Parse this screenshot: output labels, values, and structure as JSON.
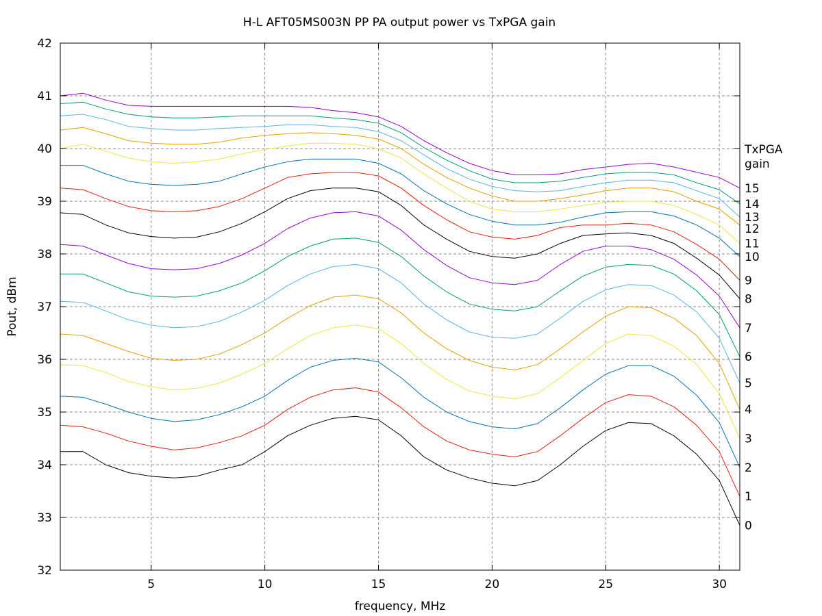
{
  "chart_data": {
    "type": "line",
    "title": "H-L AFT05MS003N PP PA output power vs TxPGA gain",
    "xlabel": "frequency, MHz",
    "ylabel": "Pout, dBm",
    "xlim": [
      1,
      30.9
    ],
    "ylim": [
      32,
      42
    ],
    "xticks": [
      "5",
      "10",
      "15",
      "20",
      "25",
      "30"
    ],
    "xtick_values": [
      5,
      10,
      15,
      20,
      25,
      30
    ],
    "yticks": [
      "32",
      "33",
      "34",
      "35",
      "36",
      "37",
      "38",
      "39",
      "40",
      "41",
      "42"
    ],
    "ytick_values": [
      32,
      33,
      34,
      35,
      36,
      37,
      38,
      39,
      40,
      41,
      42
    ],
    "grid": true,
    "legend_title": [
      "TxPGA",
      "gain"
    ],
    "x": [
      1,
      2,
      3,
      4,
      5,
      6,
      7,
      8,
      9,
      10,
      11,
      12,
      13,
      14,
      15,
      16,
      17,
      18,
      19,
      20,
      21,
      22,
      23,
      24,
      25,
      26,
      27,
      28,
      29,
      30,
      30.9
    ],
    "series": [
      {
        "name": "0",
        "color": "#000000",
        "values": [
          34.25,
          34.25,
          34.0,
          33.85,
          33.78,
          33.75,
          33.78,
          33.9,
          34.0,
          34.25,
          34.55,
          34.75,
          34.88,
          34.92,
          34.85,
          34.55,
          34.15,
          33.9,
          33.75,
          33.65,
          33.6,
          33.7,
          34.0,
          34.35,
          34.65,
          34.8,
          34.78,
          34.55,
          34.2,
          33.7,
          32.85
        ]
      },
      {
        "name": "1",
        "color": "#e51e10",
        "values": [
          34.75,
          34.72,
          34.6,
          34.45,
          34.35,
          34.28,
          34.32,
          34.42,
          34.55,
          34.75,
          35.05,
          35.28,
          35.42,
          35.46,
          35.38,
          35.08,
          34.72,
          34.45,
          34.28,
          34.2,
          34.15,
          34.25,
          34.55,
          34.88,
          35.18,
          35.33,
          35.3,
          35.1,
          34.75,
          34.25,
          33.4
        ]
      },
      {
        "name": "2",
        "color": "#0072b2",
        "values": [
          35.3,
          35.28,
          35.15,
          35.0,
          34.88,
          34.82,
          34.85,
          34.95,
          35.1,
          35.3,
          35.6,
          35.85,
          35.98,
          36.02,
          35.95,
          35.65,
          35.28,
          35.0,
          34.82,
          34.72,
          34.68,
          34.78,
          35.08,
          35.42,
          35.72,
          35.88,
          35.88,
          35.68,
          35.32,
          34.8,
          33.95
        ]
      },
      {
        "name": "3",
        "color": "#f0e442",
        "values": [
          35.9,
          35.88,
          35.75,
          35.58,
          35.48,
          35.42,
          35.45,
          35.55,
          35.72,
          35.92,
          36.2,
          36.45,
          36.6,
          36.65,
          36.58,
          36.3,
          35.92,
          35.62,
          35.4,
          35.3,
          35.25,
          35.35,
          35.65,
          35.98,
          36.3,
          36.48,
          36.45,
          36.25,
          35.9,
          35.35,
          34.5
        ]
      },
      {
        "name": "4",
        "color": "#e69f00",
        "values": [
          36.48,
          36.45,
          36.3,
          36.15,
          36.02,
          35.98,
          36.0,
          36.1,
          36.28,
          36.5,
          36.78,
          37.02,
          37.18,
          37.22,
          37.15,
          36.88,
          36.5,
          36.2,
          35.98,
          35.85,
          35.8,
          35.9,
          36.2,
          36.52,
          36.82,
          37.0,
          36.98,
          36.78,
          36.45,
          35.92,
          35.05
        ]
      },
      {
        "name": "5",
        "color": "#56b4e9",
        "values": [
          37.1,
          37.08,
          36.92,
          36.75,
          36.65,
          36.6,
          36.62,
          36.72,
          36.9,
          37.12,
          37.4,
          37.62,
          37.76,
          37.8,
          37.72,
          37.45,
          37.05,
          36.75,
          36.52,
          36.42,
          36.4,
          36.48,
          36.78,
          37.1,
          37.32,
          37.42,
          37.4,
          37.22,
          36.9,
          36.4,
          35.55
        ]
      },
      {
        "name": "6",
        "color": "#009e73",
        "values": [
          37.62,
          37.62,
          37.45,
          37.28,
          37.2,
          37.18,
          37.2,
          37.3,
          37.45,
          37.68,
          37.95,
          38.15,
          38.28,
          38.3,
          38.22,
          37.95,
          37.58,
          37.28,
          37.05,
          36.95,
          36.92,
          37.0,
          37.3,
          37.58,
          37.75,
          37.8,
          37.78,
          37.62,
          37.3,
          36.85,
          36.05
        ]
      },
      {
        "name": "7",
        "color": "#9400d3",
        "values": [
          38.18,
          38.15,
          37.98,
          37.82,
          37.72,
          37.7,
          37.72,
          37.82,
          37.98,
          38.2,
          38.48,
          38.68,
          38.78,
          38.8,
          38.72,
          38.45,
          38.08,
          37.78,
          37.55,
          37.45,
          37.42,
          37.5,
          37.8,
          38.05,
          38.15,
          38.15,
          38.08,
          37.9,
          37.6,
          37.2,
          36.6
        ]
      },
      {
        "name": "8",
        "color": "#000000",
        "values": [
          38.78,
          38.75,
          38.55,
          38.4,
          38.33,
          38.3,
          38.32,
          38.42,
          38.58,
          38.8,
          39.05,
          39.2,
          39.25,
          39.25,
          39.18,
          38.92,
          38.55,
          38.28,
          38.05,
          37.95,
          37.92,
          38.0,
          38.2,
          38.35,
          38.38,
          38.4,
          38.35,
          38.2,
          37.92,
          37.6,
          37.15
        ]
      },
      {
        "name": "9",
        "color": "#e51e10",
        "values": [
          39.25,
          39.22,
          39.05,
          38.9,
          38.82,
          38.8,
          38.82,
          38.9,
          39.05,
          39.25,
          39.45,
          39.52,
          39.55,
          39.55,
          39.48,
          39.25,
          38.92,
          38.65,
          38.42,
          38.32,
          38.28,
          38.35,
          38.5,
          38.55,
          38.55,
          38.58,
          38.55,
          38.42,
          38.18,
          37.9,
          37.5
        ]
      },
      {
        "name": "10",
        "color": "#0072b2",
        "values": [
          39.68,
          39.68,
          39.52,
          39.38,
          39.32,
          39.3,
          39.32,
          39.38,
          39.52,
          39.65,
          39.75,
          39.8,
          39.8,
          39.8,
          39.72,
          39.52,
          39.2,
          38.95,
          38.75,
          38.62,
          38.55,
          38.55,
          38.6,
          38.7,
          38.78,
          38.8,
          38.8,
          38.72,
          38.55,
          38.3,
          37.95
        ]
      },
      {
        "name": "11",
        "color": "#f0e442",
        "values": [
          40.0,
          40.08,
          39.95,
          39.82,
          39.75,
          39.72,
          39.75,
          39.8,
          39.9,
          39.98,
          40.05,
          40.1,
          40.1,
          40.08,
          40.0,
          39.82,
          39.52,
          39.25,
          39.0,
          38.85,
          38.8,
          38.8,
          38.85,
          38.92,
          38.98,
          39.0,
          39.0,
          38.92,
          38.75,
          38.55,
          38.2
        ]
      },
      {
        "name": "12",
        "color": "#e69f00",
        "values": [
          40.35,
          40.4,
          40.28,
          40.15,
          40.1,
          40.08,
          40.08,
          40.12,
          40.2,
          40.25,
          40.28,
          40.3,
          40.28,
          40.25,
          40.18,
          40.0,
          39.7,
          39.45,
          39.25,
          39.1,
          39.0,
          39.0,
          39.05,
          39.12,
          39.2,
          39.25,
          39.25,
          39.18,
          39.0,
          38.85,
          38.55
        ]
      },
      {
        "name": "13",
        "color": "#56b4e9",
        "values": [
          40.62,
          40.65,
          40.55,
          40.42,
          40.38,
          40.35,
          40.35,
          40.38,
          40.4,
          40.42,
          40.45,
          40.45,
          40.42,
          40.4,
          40.32,
          40.15,
          39.88,
          39.62,
          39.42,
          39.28,
          39.2,
          39.18,
          39.2,
          39.28,
          39.35,
          39.4,
          39.4,
          39.35,
          39.2,
          39.05,
          38.7
        ]
      },
      {
        "name": "14",
        "color": "#009e73",
        "values": [
          40.85,
          40.88,
          40.75,
          40.65,
          40.6,
          40.58,
          40.58,
          40.6,
          40.62,
          40.62,
          40.62,
          40.62,
          40.58,
          40.55,
          40.48,
          40.3,
          40.02,
          39.78,
          39.58,
          39.42,
          39.35,
          39.35,
          39.38,
          39.45,
          39.52,
          39.55,
          39.55,
          39.5,
          39.35,
          39.22,
          38.95
        ]
      },
      {
        "name": "15",
        "color": "#9400d3",
        "values": [
          41.0,
          41.05,
          40.92,
          40.82,
          40.8,
          40.8,
          40.8,
          40.8,
          40.8,
          40.8,
          40.8,
          40.78,
          40.72,
          40.68,
          40.6,
          40.42,
          40.15,
          39.92,
          39.72,
          39.58,
          39.5,
          39.5,
          39.52,
          39.6,
          39.65,
          39.7,
          39.72,
          39.65,
          39.55,
          39.45,
          39.25
        ]
      }
    ]
  }
}
